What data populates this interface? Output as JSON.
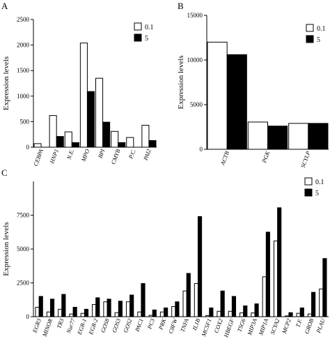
{
  "figure": {
    "panel_labels": [
      "A",
      "B",
      "C"
    ]
  },
  "colors": {
    "series_0_1": "#ffffff",
    "series_5": "#000000",
    "stroke": "#000000"
  },
  "chart_data": [
    {
      "id": "A",
      "type": "bar",
      "ylabel": "Expression levels",
      "ylim": [
        0,
        2500
      ],
      "yticks": [
        0,
        500,
        1000,
        1500,
        2000,
        2500
      ],
      "categories": [
        "CEBPA",
        "HNP1",
        "N.E.",
        "MPO",
        "BPI",
        "CMYB",
        "P.C.",
        "PAI2"
      ],
      "series": [
        {
          "name": "0.1",
          "values": [
            70,
            620,
            300,
            2040,
            1350,
            310,
            190,
            430
          ]
        },
        {
          "name": "5",
          "values": [
            null,
            210,
            90,
            1090,
            490,
            90,
            null,
            130
          ]
        }
      ],
      "legend": "top-right"
    },
    {
      "id": "B",
      "type": "bar",
      "ylabel": "Expression levels",
      "ylim": [
        0,
        15000
      ],
      "yticks": [
        0,
        5000,
        10000,
        15000
      ],
      "categories": [
        "ACTB",
        "PGK",
        "SCYLP"
      ],
      "series": [
        {
          "name": "0.1",
          "values": [
            12000,
            3050,
            2900
          ]
        },
        {
          "name": "5",
          "values": [
            10600,
            2600,
            2900
          ]
        }
      ],
      "legend": "top-right"
    },
    {
      "id": "C",
      "type": "bar",
      "ylabel": "Expression levels",
      "ylim": [
        0,
        10000
      ],
      "yticks": [
        0,
        2500,
        5000,
        7500
      ],
      "categories": [
        "EGR3",
        "MINOR",
        "TR3",
        "Nur77",
        "EGR-1",
        "EGR-2",
        "GOS8",
        "GOS3",
        "GOS2",
        "PAC1",
        "PC3",
        "PRK",
        "C8FW",
        "TNFA",
        "IL1B",
        "MCSF1",
        "COX2",
        "HBEGF",
        "TSG6",
        "MIP3A",
        "MIP1A",
        "SCYA2",
        "MCP2",
        "T.F.",
        "GROB",
        "PLAU"
      ],
      "series": [
        {
          "name": "0.1",
          "values": [
            700,
            350,
            550,
            200,
            250,
            900,
            1100,
            300,
            1100,
            350,
            100,
            350,
            750,
            1900,
            2450,
            80,
            400,
            400,
            280,
            280,
            2950,
            5600,
            60,
            250,
            200,
            2050
          ]
        },
        {
          "name": "5",
          "values": [
            1500,
            1300,
            1650,
            700,
            550,
            1400,
            1300,
            1150,
            1600,
            2450,
            500,
            650,
            1100,
            3200,
            7400,
            650,
            1900,
            1500,
            800,
            950,
            6250,
            8050,
            300,
            650,
            1800,
            4300
          ]
        }
      ],
      "legend": "top-right"
    }
  ]
}
